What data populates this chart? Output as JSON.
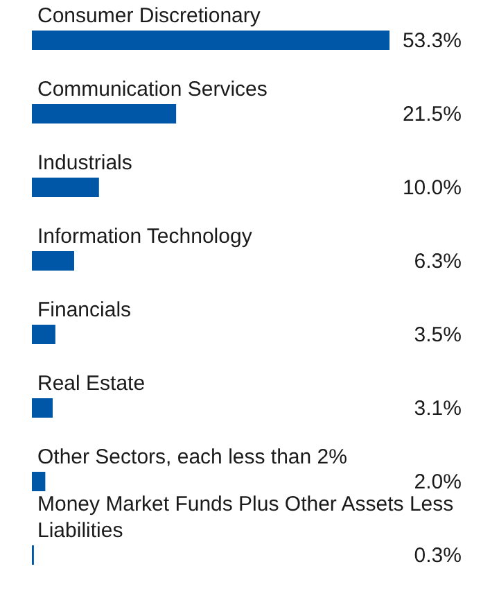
{
  "chart_data": {
    "type": "bar",
    "orientation": "horizontal",
    "categories": [
      "Consumer Discretionary",
      "Communication Services",
      "Industrials",
      "Information Technology",
      "Financials",
      "Real Estate",
      "Other Sectors, each less than 2%",
      "Money Market Funds Plus Other Assets Less Liabilities"
    ],
    "values": [
      53.3,
      21.5,
      10.0,
      6.3,
      3.5,
      3.1,
      2.0,
      0.3
    ],
    "value_labels": [
      "53.3%",
      "21.5%",
      "10.0%",
      "6.3%",
      "3.5%",
      "3.1%",
      "2.0%",
      "0.3%"
    ],
    "color": "#0057a8"
  }
}
